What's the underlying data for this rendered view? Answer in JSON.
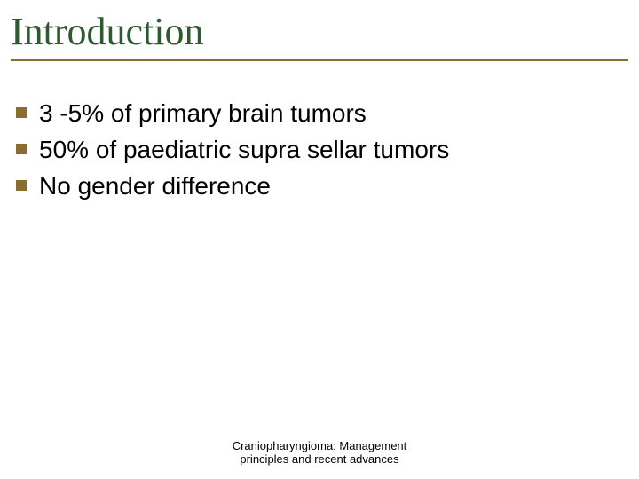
{
  "colors": {
    "title": "#2f5a2f",
    "rule": "#8a6d2f",
    "bullet_marker": "#8a6d2f",
    "body_text": "#000000",
    "footer_text": "#000000",
    "background": "#ffffff"
  },
  "typography": {
    "title_family": "Times New Roman",
    "title_size_pt": 33,
    "body_family": "Arial",
    "body_size_pt": 21,
    "footer_size_pt": 10
  },
  "title": "Introduction",
  "bullets": [
    "3 -5% of primary brain tumors",
    "50% of paediatric supra sellar tumors",
    "No gender difference"
  ],
  "footer": {
    "line1": "Craniopharyngioma: Management",
    "line2": "principles and recent advances"
  }
}
